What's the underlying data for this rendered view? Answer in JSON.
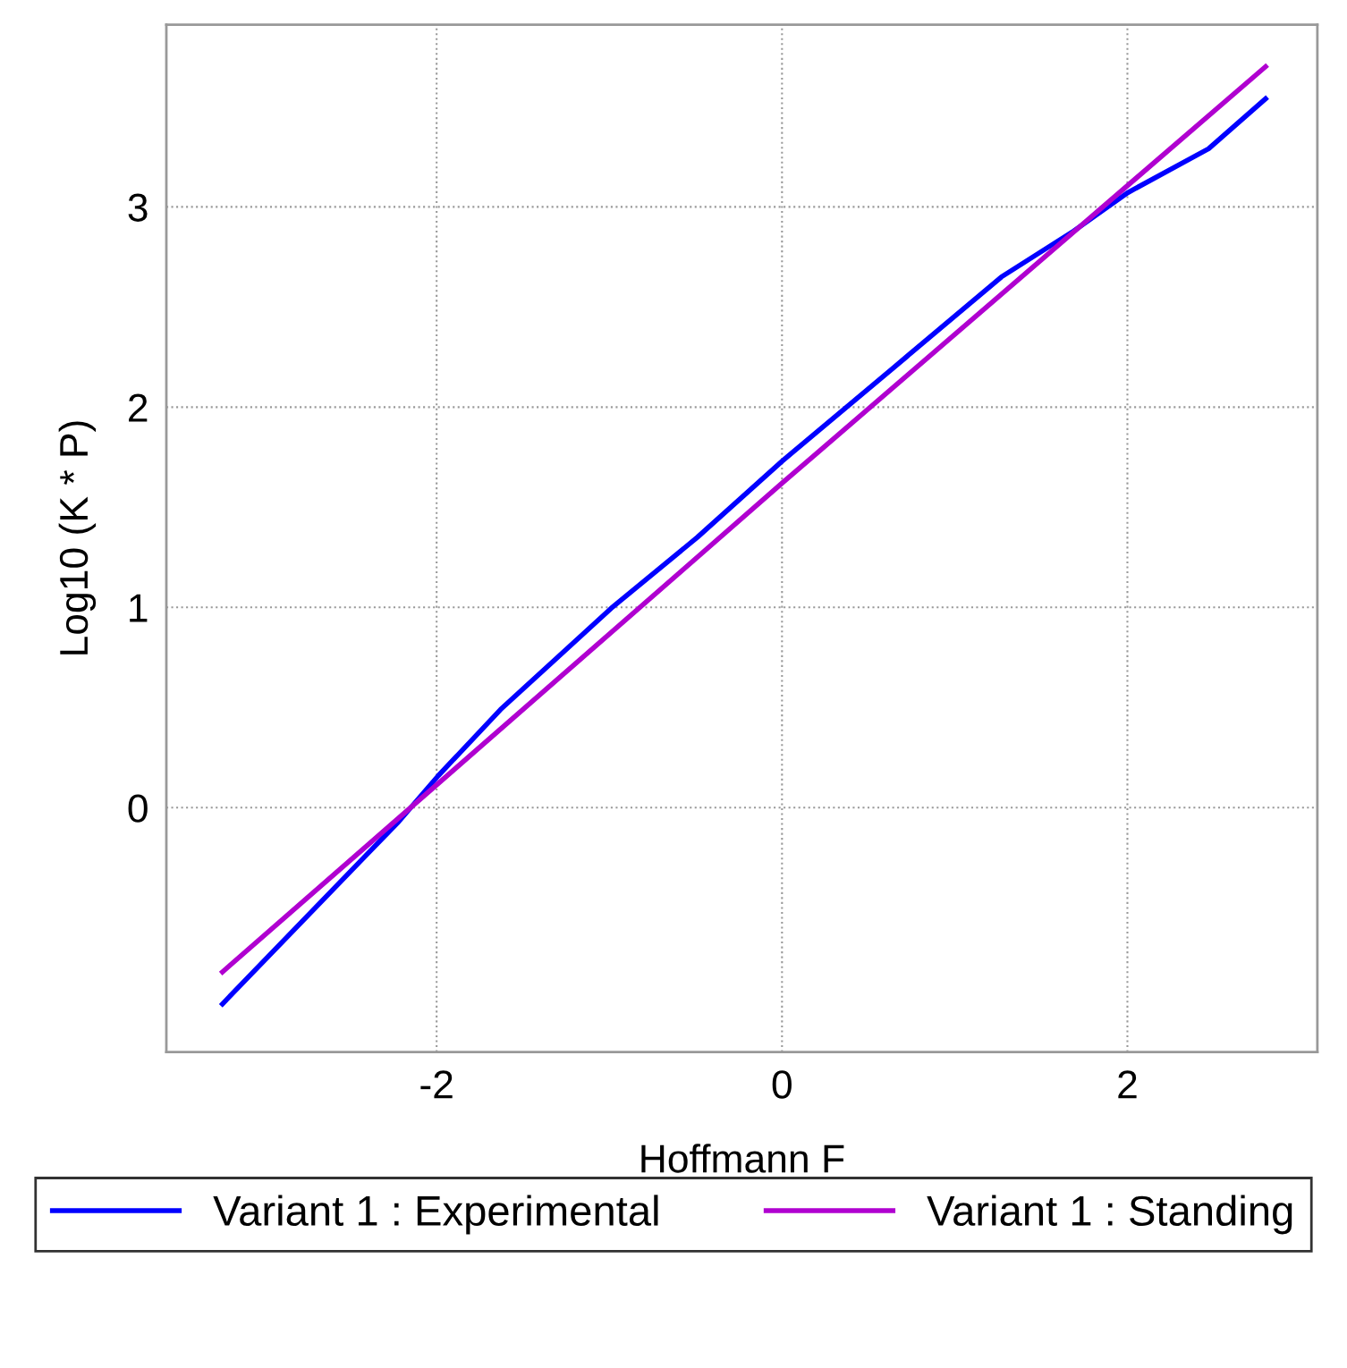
{
  "chart_data": {
    "type": "line",
    "xlabel": "Hoffmann F",
    "ylabel": "Log10 (K * P)",
    "xlim": [
      -3.565,
      3.1
    ],
    "ylim": [
      -1.22,
      3.91
    ],
    "xticks": [
      -2,
      0,
      2
    ],
    "yticks": [
      0,
      1,
      2,
      3
    ],
    "grid": true,
    "legend": "bottom",
    "marker": "none",
    "line_style": "solid",
    "series": [
      {
        "name": "Variant 1 : Experimental",
        "color": "#0000ff",
        "x": [
          -3.24,
          -2.4,
          -2.22,
          -1.99,
          -1.63,
          -0.99,
          -0.49,
          0,
          0.65,
          1.27,
          1.69,
          2,
          2.47,
          2.8
        ],
        "values": [
          -0.98,
          -0.23,
          -0.07,
          0.16,
          0.49,
          0.995,
          1.35,
          1.73,
          2.2,
          2.65,
          2.88,
          3.07,
          3.29,
          3.54
        ]
      },
      {
        "name": "Variant 1 : Standing",
        "color": "#b000d0",
        "x": [
          -3.24,
          0,
          2.8
        ],
        "values": [
          -0.82,
          1.62,
          3.7
        ]
      }
    ]
  }
}
